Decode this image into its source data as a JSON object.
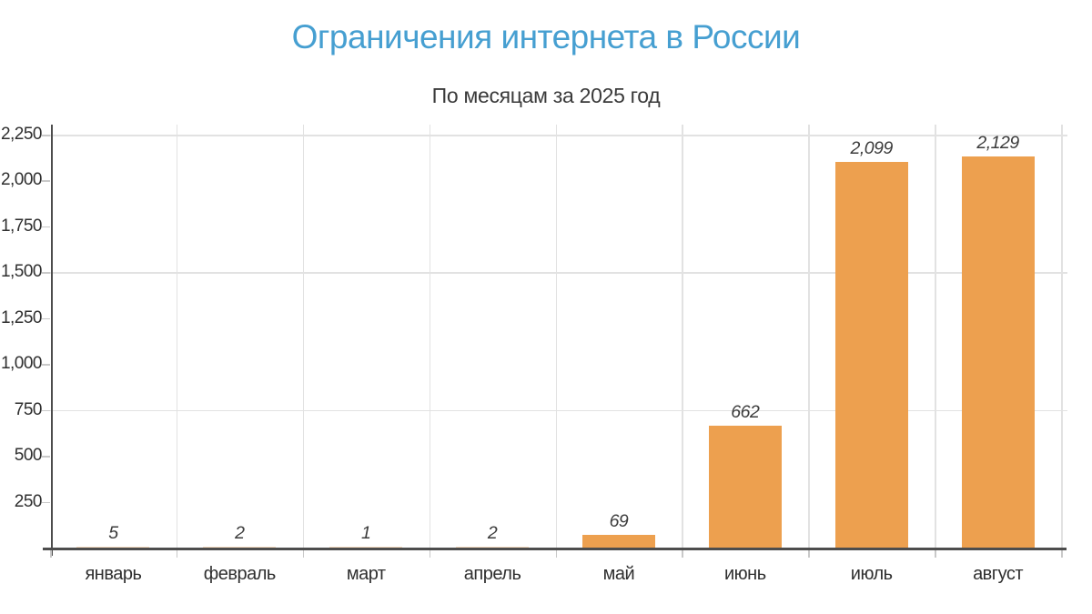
{
  "header": {
    "title": "Ограничения интернета в России",
    "subtitle": "По месяцам за 2025 год"
  },
  "chart_data": {
    "type": "bar",
    "title": "Ограничения интернета в России",
    "subtitle": "По месяцам за 2025 год",
    "categories": [
      "январь",
      "февраль",
      "март",
      "апрель",
      "май",
      "июнь",
      "июль",
      "август"
    ],
    "values": [
      5,
      2,
      1,
      2,
      69,
      662,
      2099,
      2129
    ],
    "value_labels": [
      "5",
      "2",
      "1",
      "2",
      "69",
      "662",
      "2,099",
      "2,129"
    ],
    "xlabel": "",
    "ylabel": "",
    "ylim": [
      0,
      2250
    ],
    "y_ticks": [
      {
        "value": 250,
        "label": "250"
      },
      {
        "value": 500,
        "label": "500"
      },
      {
        "value": 750,
        "label": "750"
      },
      {
        "value": 1000,
        "label": "1,000"
      },
      {
        "value": 1250,
        "label": "1,250"
      },
      {
        "value": 1500,
        "label": "1,500"
      },
      {
        "value": 1750,
        "label": "1,750"
      },
      {
        "value": 2000,
        "label": "2,000"
      },
      {
        "value": 2250,
        "label": "2,250"
      }
    ],
    "h_gridline_values": [
      750,
      1500,
      2250
    ],
    "grid": "light horizontal lines at 750/1500/2250, light vertical lines at category boundaries",
    "legend": "none",
    "colors": {
      "title": "#469FD1",
      "subtitle": "#3A3A3A",
      "bar": "#EDA04F",
      "tiny_bar": "rgba(237,160,79,0.35)",
      "axis_line": "#4D4D4D",
      "gridline": "#E2E2E2",
      "tick": "#C9C9C9",
      "tick_label": "#2F2F2F",
      "value_label": "#3C3C3C"
    }
  }
}
